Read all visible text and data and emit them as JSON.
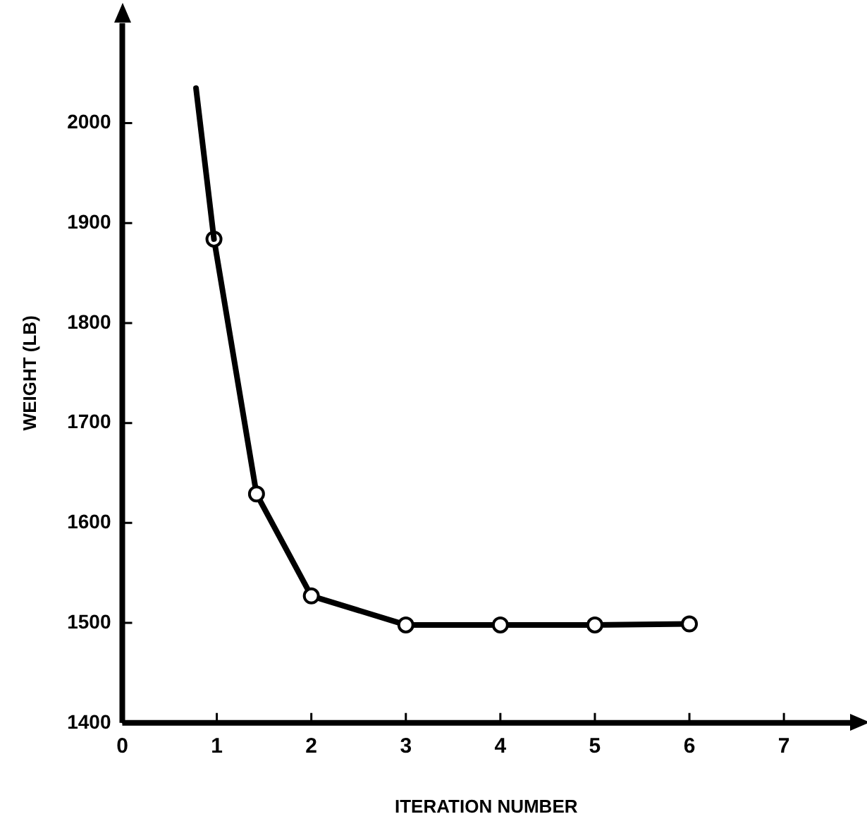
{
  "chart_data": {
    "type": "line",
    "xlabel": "ITERATION NUMBER",
    "ylabel": "WEIGHT (LB)",
    "xlim": [
      0,
      7.7
    ],
    "ylim": [
      1400,
      2100
    ],
    "xticks": [
      0,
      1,
      2,
      3,
      4,
      5,
      6,
      7
    ],
    "yticks": [
      1400,
      1500,
      1600,
      1700,
      1800,
      1900,
      2000
    ],
    "grid": false,
    "legend": false,
    "line_style": "solid",
    "series": [
      {
        "color": "#000000",
        "x": [
          0.78,
          0.97
        ],
        "values": [
          2035,
          1884
        ]
      },
      {
        "color": "#000000",
        "marker": "circle",
        "x": [
          0.97,
          1.42,
          2,
          3,
          4,
          5,
          6
        ],
        "values": [
          1884,
          1629,
          1527,
          1498,
          1498,
          1498,
          1499
        ]
      }
    ]
  }
}
